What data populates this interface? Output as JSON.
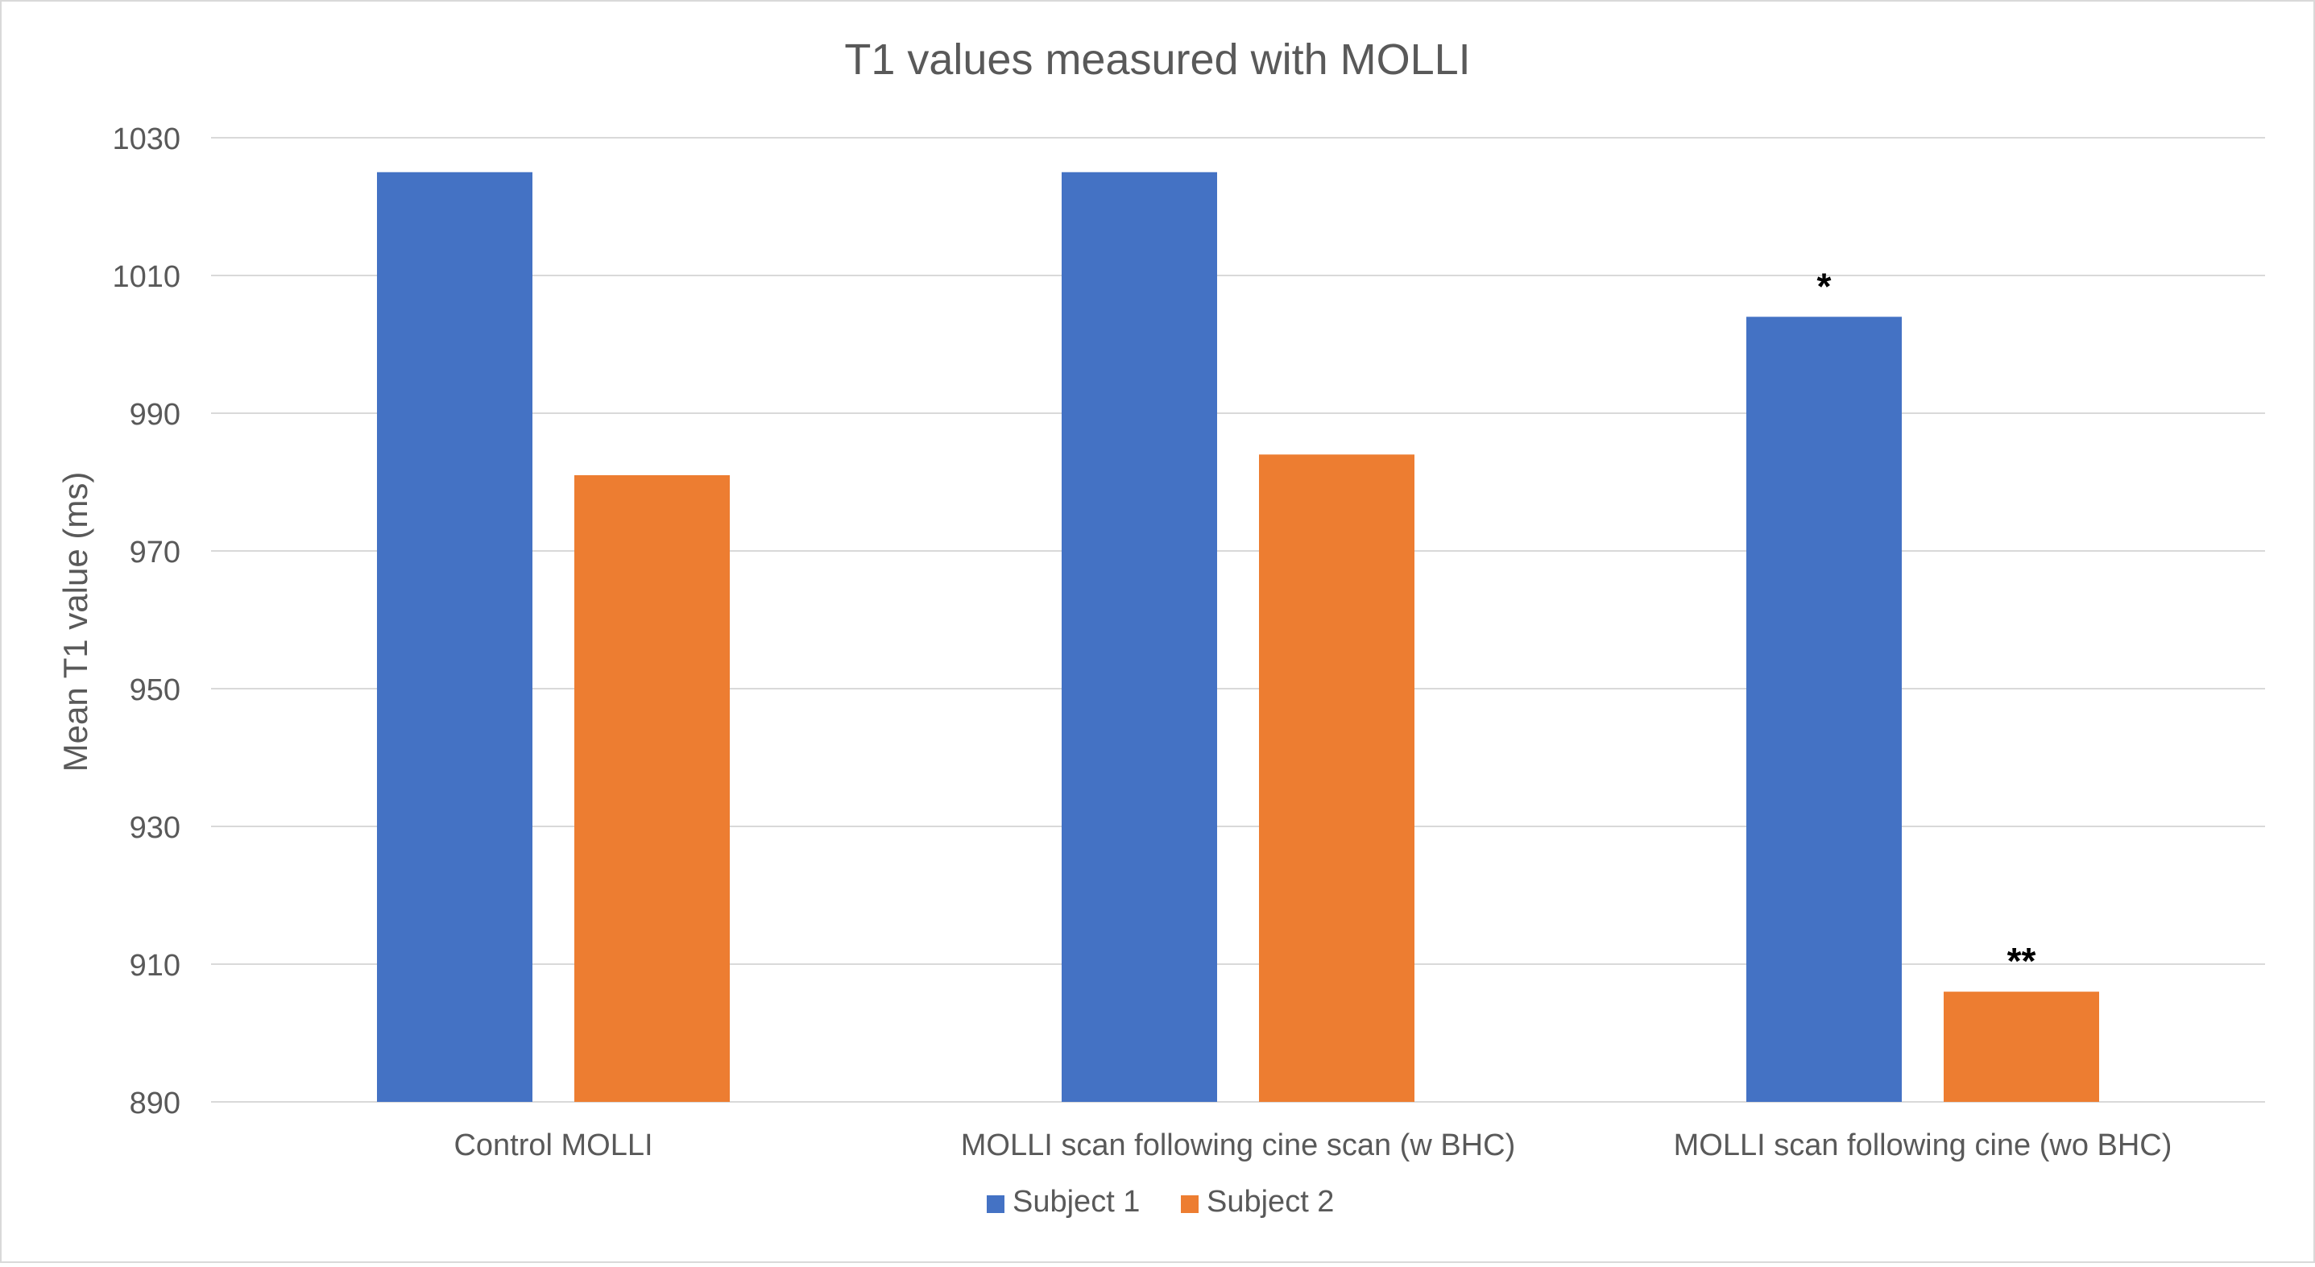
{
  "chart_data": {
    "type": "bar",
    "title": "T1 values measured with MOLLI",
    "xlabel": "",
    "ylabel": "Mean T1 value (ms)",
    "ylim": [
      890,
      1030
    ],
    "yticks": [
      890,
      910,
      930,
      950,
      970,
      990,
      1010,
      1030
    ],
    "grid": true,
    "legend_position": "bottom",
    "categories": [
      "Control  MOLLI",
      "MOLLI scan following cine scan (w BHC)",
      "MOLLI scan following cine (wo BHC)"
    ],
    "series": [
      {
        "name": "Subject 1",
        "color": "#4472C4",
        "values": [
          1025,
          1025,
          1004
        ],
        "annotations": [
          "",
          "",
          "*"
        ]
      },
      {
        "name": "Subject 2",
        "color": "#ED7D31",
        "values": [
          981,
          984,
          906
        ],
        "annotations": [
          "",
          "",
          "**"
        ]
      }
    ]
  }
}
